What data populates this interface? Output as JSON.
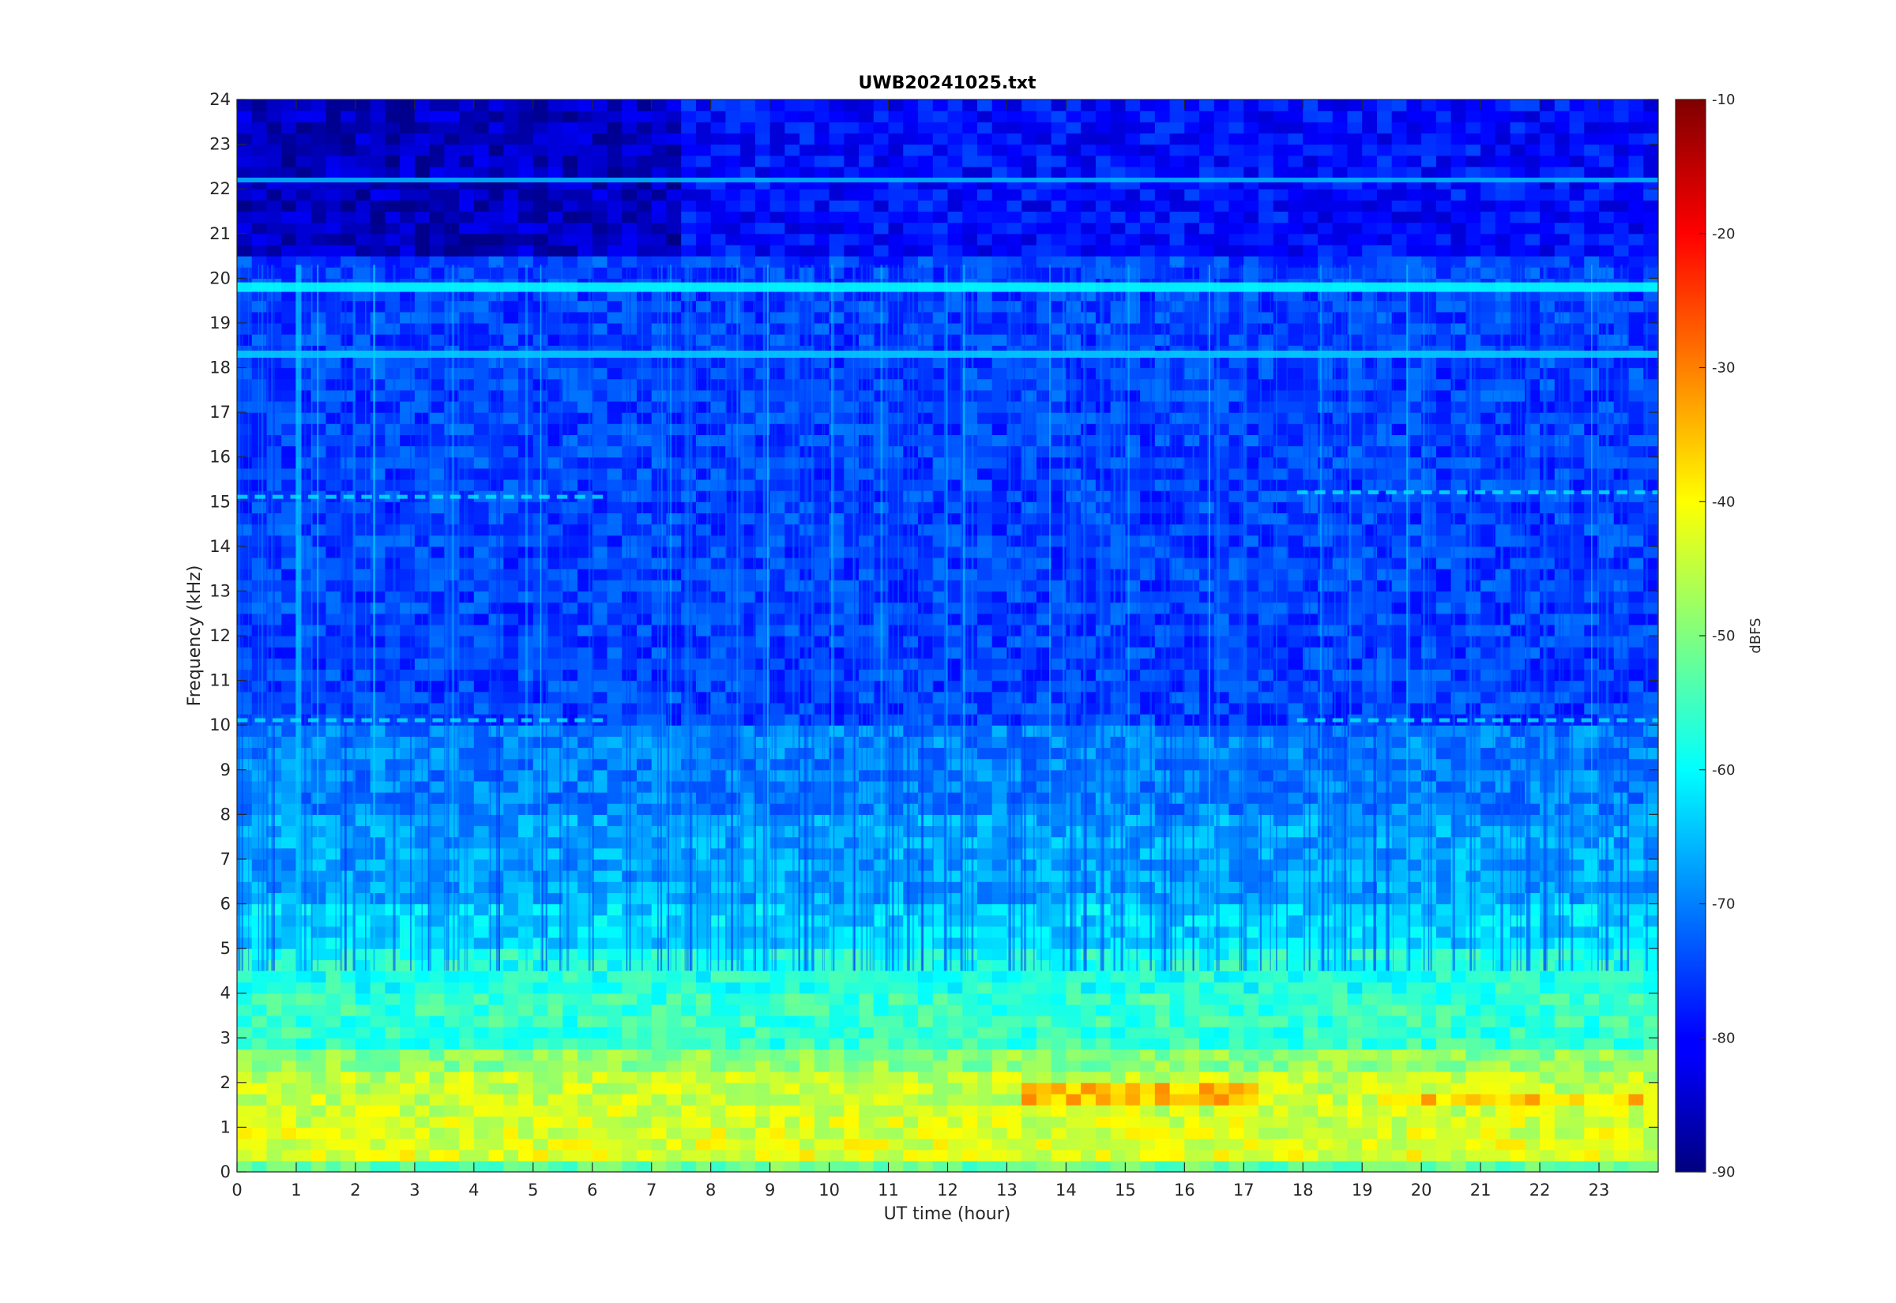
{
  "chart_data": {
    "type": "heatmap",
    "title": "UWB20241025.txt",
    "xlabel": "UT time (hour)",
    "ylabel": "Frequency (kHz)",
    "xlim": [
      0,
      24
    ],
    "ylim": [
      0,
      24
    ],
    "x_ticks": [
      "0",
      "1",
      "2",
      "3",
      "4",
      "5",
      "6",
      "7",
      "8",
      "9",
      "10",
      "11",
      "12",
      "13",
      "14",
      "15",
      "16",
      "17",
      "18",
      "19",
      "20",
      "21",
      "22",
      "23"
    ],
    "y_ticks": [
      "0",
      "1",
      "2",
      "3",
      "4",
      "5",
      "6",
      "7",
      "8",
      "9",
      "10",
      "11",
      "12",
      "13",
      "14",
      "15",
      "16",
      "17",
      "18",
      "19",
      "20",
      "21",
      "22",
      "23",
      "24"
    ],
    "grid": false,
    "colormap": "jet",
    "colorbar": {
      "label": "dBFS",
      "clim": [
        -90,
        -10
      ],
      "ticks": [
        "-90",
        "-80",
        "-70",
        "-60",
        "-50",
        "-40",
        "-30",
        "-20",
        "-10"
      ]
    },
    "features": {
      "horizontal_lines_khz": [
        19.8,
        18.3,
        22.2
      ],
      "low_frequency_band_khz": [
        0,
        2.8
      ],
      "low_frequency_band_level_dbfs": -43,
      "background_level_dbfs": -75,
      "top_band_level_dbfs": -85,
      "hot_spot_hours": [
        13.3,
        17.3
      ],
      "hot_spot_khz": [
        1.4,
        1.9
      ],
      "hot_spot_level_dbfs": -32
    }
  }
}
